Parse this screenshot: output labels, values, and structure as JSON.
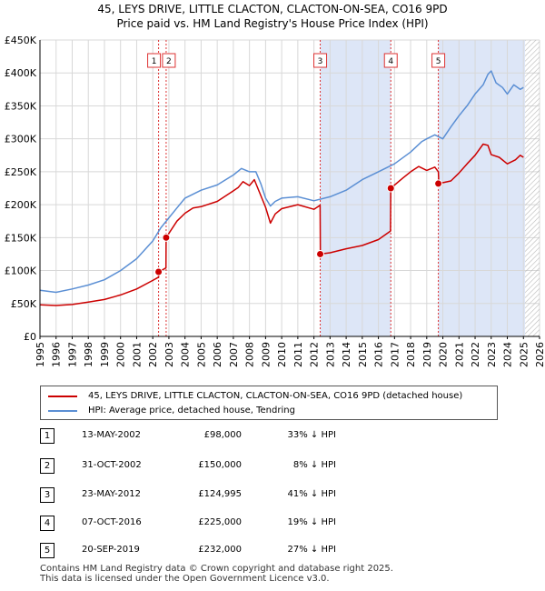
{
  "title_line1": "45, LEYS DRIVE, LITTLE CLACTON, CLACTON-ON-SEA, CO16 9PD",
  "title_line2": "Price paid vs. HM Land Registry's House Price Index (HPI)",
  "colors": {
    "property": "#cc0000",
    "hpi": "#5b8fd4",
    "shade": "#dde6f7",
    "marker_line": "#dd3333"
  },
  "chart_data": {
    "type": "line",
    "title": "Price paid vs. HM Land Registry's House Price Index (HPI)",
    "xlim": [
      1995,
      2026
    ],
    "ylim": [
      0,
      450000
    ],
    "x_ticks": [
      1995,
      1996,
      1997,
      1998,
      1999,
      2000,
      2001,
      2002,
      2003,
      2004,
      2005,
      2006,
      2007,
      2008,
      2009,
      2010,
      2011,
      2012,
      2013,
      2014,
      2015,
      2016,
      2017,
      2018,
      2019,
      2020,
      2021,
      2022,
      2023,
      2024,
      2025,
      2026
    ],
    "y_ticks": [
      {
        "value": 0,
        "label": "£0"
      },
      {
        "value": 50000,
        "label": "£50K"
      },
      {
        "value": 100000,
        "label": "£100K"
      },
      {
        "value": 150000,
        "label": "£150K"
      },
      {
        "value": 200000,
        "label": "£200K"
      },
      {
        "value": 250000,
        "label": "£250K"
      },
      {
        "value": 300000,
        "label": "£300K"
      },
      {
        "value": 350000,
        "label": "£350K"
      },
      {
        "value": 400000,
        "label": "£400K"
      },
      {
        "value": 450000,
        "label": "£450K"
      }
    ],
    "grid": true,
    "forecast_start": 2025.1,
    "series": [
      {
        "name": "45, LEYS DRIVE, LITTLE CLACTON, CLACTON-ON-SEA, CO16 9PD (detached house)",
        "key": "property",
        "x": [
          1995.0,
          1996.0,
          1997.0,
          1998.0,
          1999.0,
          2000.0,
          2001.0,
          2002.0,
          2002.36,
          2002.37,
          2002.82,
          2002.83,
          2003.5,
          2004.0,
          2004.5,
          2005.0,
          2006.0,
          2007.0,
          2007.3,
          2007.6,
          2008.0,
          2008.3,
          2008.6,
          2009.0,
          2009.3,
          2009.6,
          2010.0,
          2011.0,
          2012.0,
          2012.38,
          2012.4,
          2013.0,
          2014.0,
          2015.0,
          2016.0,
          2016.75,
          2016.77,
          2017.5,
          2018.0,
          2018.5,
          2019.0,
          2019.5,
          2019.72,
          2019.75,
          2020.5,
          2021.0,
          2021.5,
          2022.0,
          2022.5,
          2022.8,
          2023.0,
          2023.5,
          2024.0,
          2024.5,
          2024.8,
          2025.0
        ],
        "y": [
          48000,
          47000,
          48500,
          52000,
          56000,
          63000,
          72000,
          85000,
          90000,
          98000,
          104000,
          150000,
          175000,
          187000,
          195000,
          197000,
          205000,
          221000,
          226000,
          235000,
          229000,
          238000,
          220000,
          196000,
          172000,
          186000,
          194000,
          200000,
          193000,
          199000,
          124995,
          127000,
          133000,
          138000,
          147000,
          160000,
          225000,
          240000,
          250000,
          258000,
          252000,
          257000,
          250000,
          232000,
          236000,
          248000,
          262000,
          275000,
          292000,
          290000,
          276000,
          272000,
          262000,
          268000,
          275000,
          272000
        ]
      },
      {
        "name": "HPI: Average price, detached house, Tendring",
        "key": "hpi",
        "x": [
          1995.0,
          1996.0,
          1997.0,
          1998.0,
          1999.0,
          2000.0,
          2001.0,
          2002.0,
          2002.5,
          2003.0,
          2003.5,
          2004.0,
          2005.0,
          2006.0,
          2007.0,
          2007.5,
          2008.0,
          2008.4,
          2008.7,
          2009.0,
          2009.3,
          2009.6,
          2010.0,
          2011.0,
          2012.0,
          2013.0,
          2014.0,
          2015.0,
          2016.0,
          2017.0,
          2018.0,
          2018.7,
          2019.0,
          2019.5,
          2020.0,
          2020.5,
          2021.0,
          2021.5,
          2022.0,
          2022.5,
          2022.8,
          2023.0,
          2023.3,
          2023.7,
          2024.0,
          2024.4,
          2024.8,
          2025.0
        ],
        "y": [
          70000,
          67000,
          72000,
          78000,
          86000,
          100000,
          118000,
          145000,
          165000,
          180000,
          195000,
          210000,
          222000,
          230000,
          245000,
          255000,
          250000,
          250000,
          232000,
          210000,
          198000,
          205000,
          210000,
          212000,
          206000,
          212000,
          222000,
          238000,
          250000,
          262000,
          280000,
          296000,
          300000,
          306000,
          300000,
          318000,
          335000,
          350000,
          368000,
          382000,
          398000,
          403000,
          385000,
          378000,
          368000,
          382000,
          375000,
          378000
        ]
      }
    ],
    "sales": [
      {
        "label": "1",
        "x": 2002.36,
        "y": 98000
      },
      {
        "label": "2",
        "x": 2002.83,
        "y": 150000
      },
      {
        "label": "3",
        "x": 2012.39,
        "y": 124995
      },
      {
        "label": "4",
        "x": 2016.77,
        "y": 225000
      },
      {
        "label": "5",
        "x": 2019.72,
        "y": 232000
      }
    ],
    "shaded_ranges": [
      [
        2012.39,
        2016.77
      ],
      [
        2019.72,
        2025.1
      ]
    ]
  },
  "legend": {
    "property": "45, LEYS DRIVE, LITTLE CLACTON, CLACTON-ON-SEA, CO16 9PD (detached house)",
    "hpi": "HPI: Average price, detached house, Tendring"
  },
  "sales_table": [
    {
      "num": "1",
      "date": "13-MAY-2002",
      "price": "£98,000",
      "hpi": "33% ↓ HPI"
    },
    {
      "num": "2",
      "date": "31-OCT-2002",
      "price": "£150,000",
      "hpi": "8% ↓ HPI"
    },
    {
      "num": "3",
      "date": "23-MAY-2012",
      "price": "£124,995",
      "hpi": "41% ↓ HPI"
    },
    {
      "num": "4",
      "date": "07-OCT-2016",
      "price": "£225,000",
      "hpi": "19% ↓ HPI"
    },
    {
      "num": "5",
      "date": "20-SEP-2019",
      "price": "£232,000",
      "hpi": "27% ↓ HPI"
    }
  ],
  "footer_line1": "Contains HM Land Registry data © Crown copyright and database right 2025.",
  "footer_line2": "This data is licensed under the Open Government Licence v3.0."
}
